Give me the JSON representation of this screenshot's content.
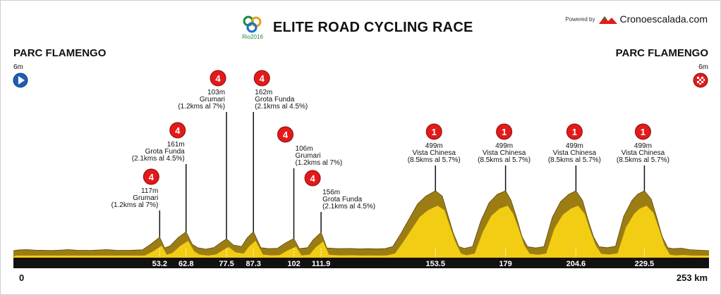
{
  "header": {
    "title": "ELITE ROAD CYCLING RACE",
    "logo_text": "Rio2016",
    "powered_by": "Powered by",
    "brand": "Cronoescalada.com"
  },
  "start": {
    "name": "PARC FLAMENGO",
    "altitude": "6m",
    "icon": "start-play-icon"
  },
  "finish": {
    "name": "PARC FLAMENGO",
    "altitude": "6m",
    "icon": "finish-checkered-flag-icon"
  },
  "colors": {
    "profile_fill": "#f2cd13",
    "profile_shade": "#9c7d14",
    "base_bar": "#111111",
    "badge": "#e21a1a"
  },
  "chart_data": {
    "type": "area",
    "x_unit": "km",
    "y_unit": "m",
    "xlim": [
      0,
      253
    ],
    "x_start_label": "0",
    "x_end_label": "253 km",
    "x_tick_labels": [
      "53.2",
      "62.8",
      "77.5",
      "87.3",
      "102",
      "111.9",
      "153.5",
      "179",
      "204.6",
      "229.5"
    ],
    "profile": [
      [
        0,
        6
      ],
      [
        2,
        12
      ],
      [
        5,
        14
      ],
      [
        8,
        10
      ],
      [
        14,
        7
      ],
      [
        17,
        10
      ],
      [
        20,
        14
      ],
      [
        23,
        9
      ],
      [
        28,
        8
      ],
      [
        34,
        14
      ],
      [
        38,
        8
      ],
      [
        43,
        9
      ],
      [
        47,
        13
      ],
      [
        50,
        60
      ],
      [
        53.2,
        117
      ],
      [
        55,
        28
      ],
      [
        57,
        45
      ],
      [
        60,
        115
      ],
      [
        62.8,
        161
      ],
      [
        65,
        60
      ],
      [
        67,
        30
      ],
      [
        70,
        18
      ],
      [
        73,
        32
      ],
      [
        75,
        65
      ],
      [
        77.5,
        103
      ],
      [
        80,
        52
      ],
      [
        83,
        40
      ],
      [
        85,
        110
      ],
      [
        87.3,
        162
      ],
      [
        90,
        30
      ],
      [
        93,
        22
      ],
      [
        96,
        25
      ],
      [
        99,
        70
      ],
      [
        102,
        106
      ],
      [
        104,
        22
      ],
      [
        107,
        30
      ],
      [
        109,
        95
      ],
      [
        111.9,
        156
      ],
      [
        114,
        28
      ],
      [
        118,
        22
      ],
      [
        123,
        24
      ],
      [
        126,
        20
      ],
      [
        129,
        22
      ],
      [
        132,
        20
      ],
      [
        135,
        22
      ],
      [
        138,
        40
      ],
      [
        141,
        150
      ],
      [
        144,
        270
      ],
      [
        147,
        390
      ],
      [
        150,
        455
      ],
      [
        153.5,
        499
      ],
      [
        156,
        455
      ],
      [
        158,
        300
      ],
      [
        160,
        150
      ],
      [
        162,
        40
      ],
      [
        164,
        24
      ],
      [
        167,
        40
      ],
      [
        170,
        250
      ],
      [
        173,
        400
      ],
      [
        176,
        470
      ],
      [
        179,
        499
      ],
      [
        181,
        420
      ],
      [
        183,
        280
      ],
      [
        185,
        120
      ],
      [
        187,
        38
      ],
      [
        190,
        28
      ],
      [
        193,
        40
      ],
      [
        196,
        280
      ],
      [
        199,
        410
      ],
      [
        202,
        470
      ],
      [
        204.6,
        499
      ],
      [
        207,
        420
      ],
      [
        209,
        260
      ],
      [
        211,
        120
      ],
      [
        213,
        38
      ],
      [
        216,
        30
      ],
      [
        219,
        42
      ],
      [
        222,
        290
      ],
      [
        225,
        420
      ],
      [
        227,
        470
      ],
      [
        229.5,
        499
      ],
      [
        232,
        430
      ],
      [
        234,
        280
      ],
      [
        236,
        120
      ],
      [
        238,
        30
      ],
      [
        240,
        22
      ],
      [
        243,
        26
      ],
      [
        246,
        14
      ],
      [
        249,
        10
      ],
      [
        253,
        6
      ]
    ],
    "climbs": [
      {
        "km": 53.2,
        "category": "4",
        "altitude": "117m",
        "name": "Grumari",
        "detail": "(1.2kms al 7%)"
      },
      {
        "km": 62.8,
        "category": "4",
        "altitude": "161m",
        "name": "Grota Funda",
        "detail": "(2.1kms al 4.5%)"
      },
      {
        "km": 77.5,
        "category": "4",
        "altitude": "103m",
        "name": "Grumari",
        "detail": "(1.2kms al 7%)"
      },
      {
        "km": 87.3,
        "category": "4",
        "altitude": "162m",
        "name": "Grota Funda",
        "detail": "(2.1kms al 4.5%)"
      },
      {
        "km": 102,
        "category": "4",
        "altitude": "106m",
        "name": "Grumari",
        "detail": "(1.2kms al 7%)"
      },
      {
        "km": 111.9,
        "category": "4",
        "altitude": "156m",
        "name": "Grota Funda",
        "detail": "(2.1kms al 4.5%)"
      },
      {
        "km": 153.5,
        "category": "1",
        "altitude": "499m",
        "name": "Vista Chinesa",
        "detail": "(8.5kms al 5.7%)"
      },
      {
        "km": 179,
        "category": "1",
        "altitude": "499m",
        "name": "Vista Chinesa",
        "detail": "(8.5kms al 5.7%)"
      },
      {
        "km": 204.6,
        "category": "1",
        "altitude": "499m",
        "name": "Vista Chinesa",
        "detail": "(8.5kms al 5.7%)"
      },
      {
        "km": 229.5,
        "category": "1",
        "altitude": "499m",
        "name": "Vista Chinesa",
        "detail": "(8.5kms al 5.7%)"
      }
    ]
  }
}
